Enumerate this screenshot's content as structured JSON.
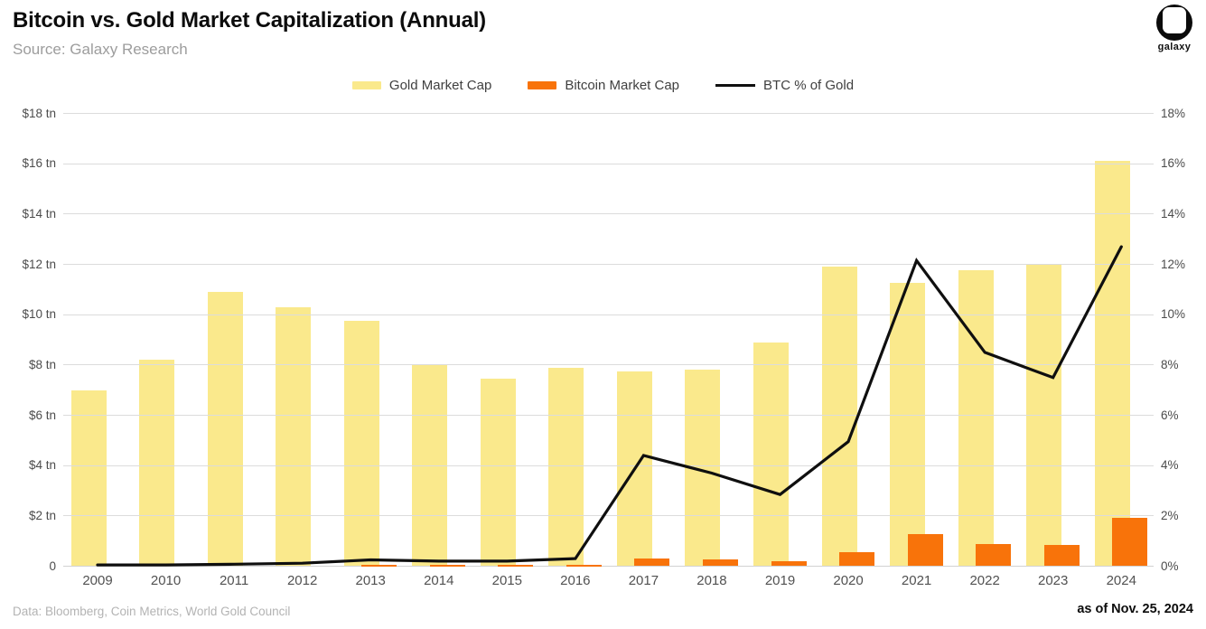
{
  "header": {
    "title": "Bitcoin vs. Gold Market Capitalization (Annual)",
    "source": "Source: Galaxy Research",
    "logo_text": "galaxy"
  },
  "chart_data": {
    "type": "combo (grouped bars + line)",
    "title": "Bitcoin vs. Gold Market Capitalization (Annual)",
    "categories": [
      "2009",
      "2010",
      "2011",
      "2012",
      "2013",
      "2014",
      "2015",
      "2016",
      "2017",
      "2018",
      "2019",
      "2020",
      "2021",
      "2022",
      "2023",
      "2024"
    ],
    "series": [
      {
        "name": "Gold Market Cap",
        "type": "bar",
        "axis": "left",
        "color": "#fae98c",
        "values": [
          7.0,
          8.2,
          10.9,
          10.3,
          9.75,
          8.0,
          7.45,
          7.9,
          7.75,
          7.8,
          8.9,
          11.9,
          11.25,
          11.75,
          12.0,
          16.1
        ]
      },
      {
        "name": "Bitcoin Market Cap",
        "type": "bar",
        "axis": "left",
        "color": "#f8730a",
        "values": [
          0,
          0,
          0,
          0,
          0.012,
          0.006,
          0.008,
          0.018,
          0.32,
          0.27,
          0.19,
          0.54,
          1.28,
          0.88,
          0.85,
          1.93
        ]
      },
      {
        "name": "BTC % of Gold",
        "type": "line",
        "axis": "right",
        "color": "#0f0f0f",
        "values": [
          0.05,
          0.05,
          0.08,
          0.12,
          0.25,
          0.2,
          0.2,
          0.3,
          4.4,
          3.7,
          2.85,
          4.95,
          12.15,
          8.5,
          7.5,
          12.7
        ]
      }
    ],
    "left_axis": {
      "unit": "$ tn",
      "min": 0,
      "max": 18,
      "ticks": [
        "$18 tn",
        "$16 tn",
        "$14 tn",
        "$12 tn",
        "$10 tn",
        "$8 tn",
        "$6 tn",
        "$4 tn",
        "$2 tn",
        "0"
      ]
    },
    "right_axis": {
      "unit": "%",
      "min": 0,
      "max": 18,
      "ticks": [
        "18%",
        "16%",
        "14%",
        "12%",
        "10%",
        "8%",
        "6%",
        "4%",
        "2%",
        "0%"
      ]
    },
    "grid": "horizontal",
    "legend_position": "top-center"
  },
  "footer": {
    "data_note": "Data: Bloomberg, Coin Metrics, World Gold Council",
    "as_of": "as of Nov. 25, 2024"
  }
}
